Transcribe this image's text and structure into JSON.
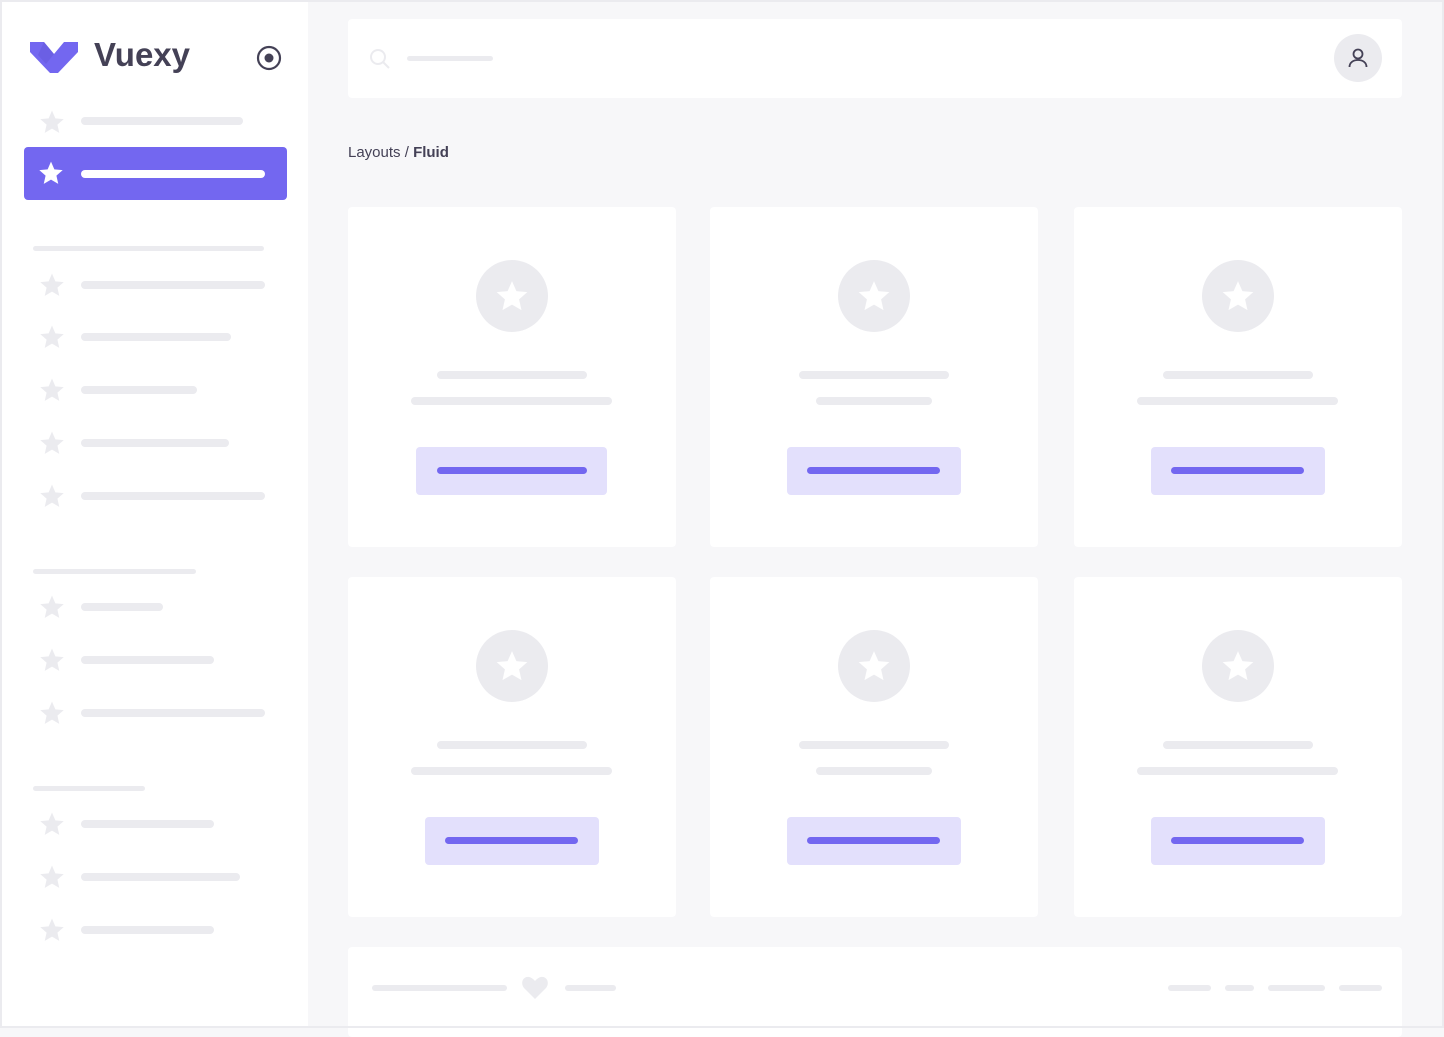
{
  "brand": {
    "name": "Vuexy",
    "color": "#7367f0"
  },
  "sidebar": {
    "toggle_icon": "radio-circle-icon",
    "item_icon": "star-icon"
  },
  "header": {
    "search_icon": "search-icon",
    "user_icon": "user-icon"
  },
  "breadcrumb": {
    "parent": "Layouts",
    "separator": " / ",
    "current": "Fluid"
  },
  "cards": {
    "count": 6,
    "icon": "star-icon"
  },
  "footer": {
    "icon": "heart-icon"
  },
  "colors": {
    "primary": "#7367f0",
    "primary_light": "#e3e0fc",
    "placeholder": "#ebebef",
    "background": "#f7f7f9",
    "text": "#444156"
  }
}
